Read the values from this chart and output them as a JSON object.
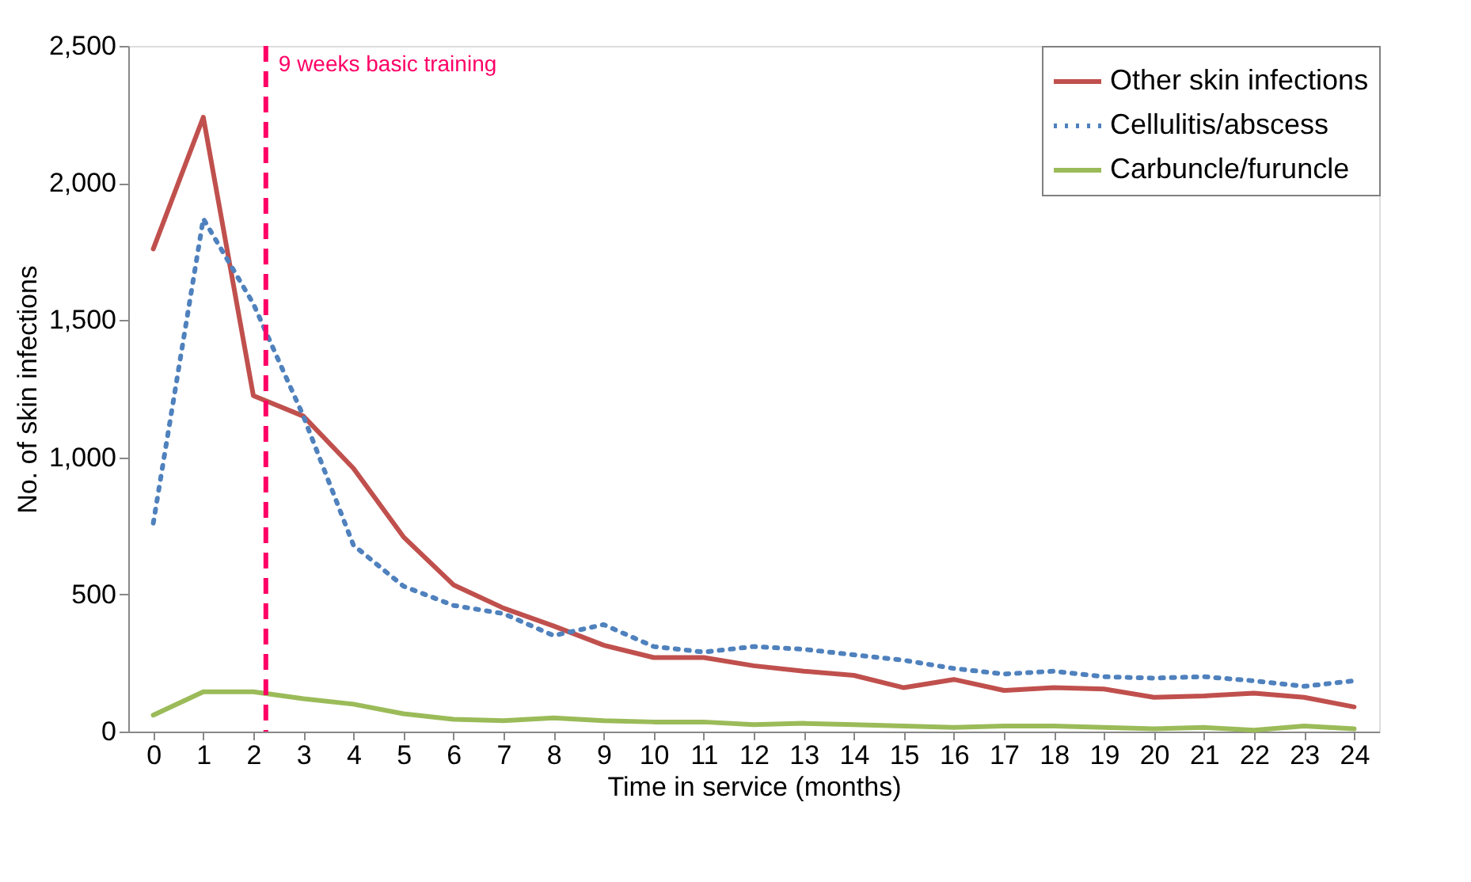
{
  "chart_data": {
    "type": "line",
    "xlabel": "Time in service (months)",
    "ylabel": "No. of skin infections",
    "x": [
      0,
      1,
      2,
      3,
      4,
      5,
      6,
      7,
      8,
      9,
      10,
      11,
      12,
      13,
      14,
      15,
      16,
      17,
      18,
      19,
      20,
      21,
      22,
      23,
      24
    ],
    "series": [
      {
        "name": "Other skin infections",
        "color": "#c0504d",
        "line_style": "solid",
        "values": [
          1760,
          2240,
          1225,
          1150,
          960,
          710,
          535,
          450,
          385,
          315,
          270,
          270,
          240,
          220,
          205,
          160,
          190,
          150,
          160,
          155,
          125,
          130,
          140,
          125,
          90
        ]
      },
      {
        "name": "Cellulitis/abscess",
        "color": "#4f81bd",
        "line_style": "dotted",
        "values": [
          760,
          1870,
          1560,
          1150,
          680,
          530,
          460,
          430,
          350,
          390,
          310,
          290,
          310,
          300,
          280,
          260,
          230,
          210,
          220,
          200,
          195,
          200,
          185,
          165,
          185
        ]
      },
      {
        "name": "Carbuncle/furuncle",
        "color": "#9bbb59",
        "line_style": "solid",
        "values": [
          60,
          145,
          145,
          120,
          100,
          65,
          45,
          40,
          50,
          40,
          35,
          35,
          25,
          30,
          25,
          20,
          15,
          20,
          20,
          15,
          10,
          15,
          5,
          20,
          10
        ]
      }
    ],
    "xlim": [
      -0.5,
      24.5
    ],
    "xticks": [
      0,
      1,
      2,
      3,
      4,
      5,
      6,
      7,
      8,
      9,
      10,
      11,
      12,
      13,
      14,
      15,
      16,
      17,
      18,
      19,
      20,
      21,
      22,
      23,
      24
    ],
    "ylim": [
      0,
      2500
    ],
    "yticks": [
      {
        "value": 0,
        "label": "0"
      },
      {
        "value": 500,
        "label": "500"
      },
      {
        "value": 1000,
        "label": "1,000"
      },
      {
        "value": 1500,
        "label": "1,500"
      },
      {
        "value": 2000,
        "label": "2,000"
      },
      {
        "value": 2500,
        "label": "2,500"
      }
    ],
    "ref_lines": [
      {
        "axis": "x",
        "value": 2.25,
        "label": "9 weeks basic training",
        "color": "#ff0066",
        "line_style": "dashed"
      }
    ],
    "grid": false,
    "legend": "top right",
    "marker": "none"
  }
}
